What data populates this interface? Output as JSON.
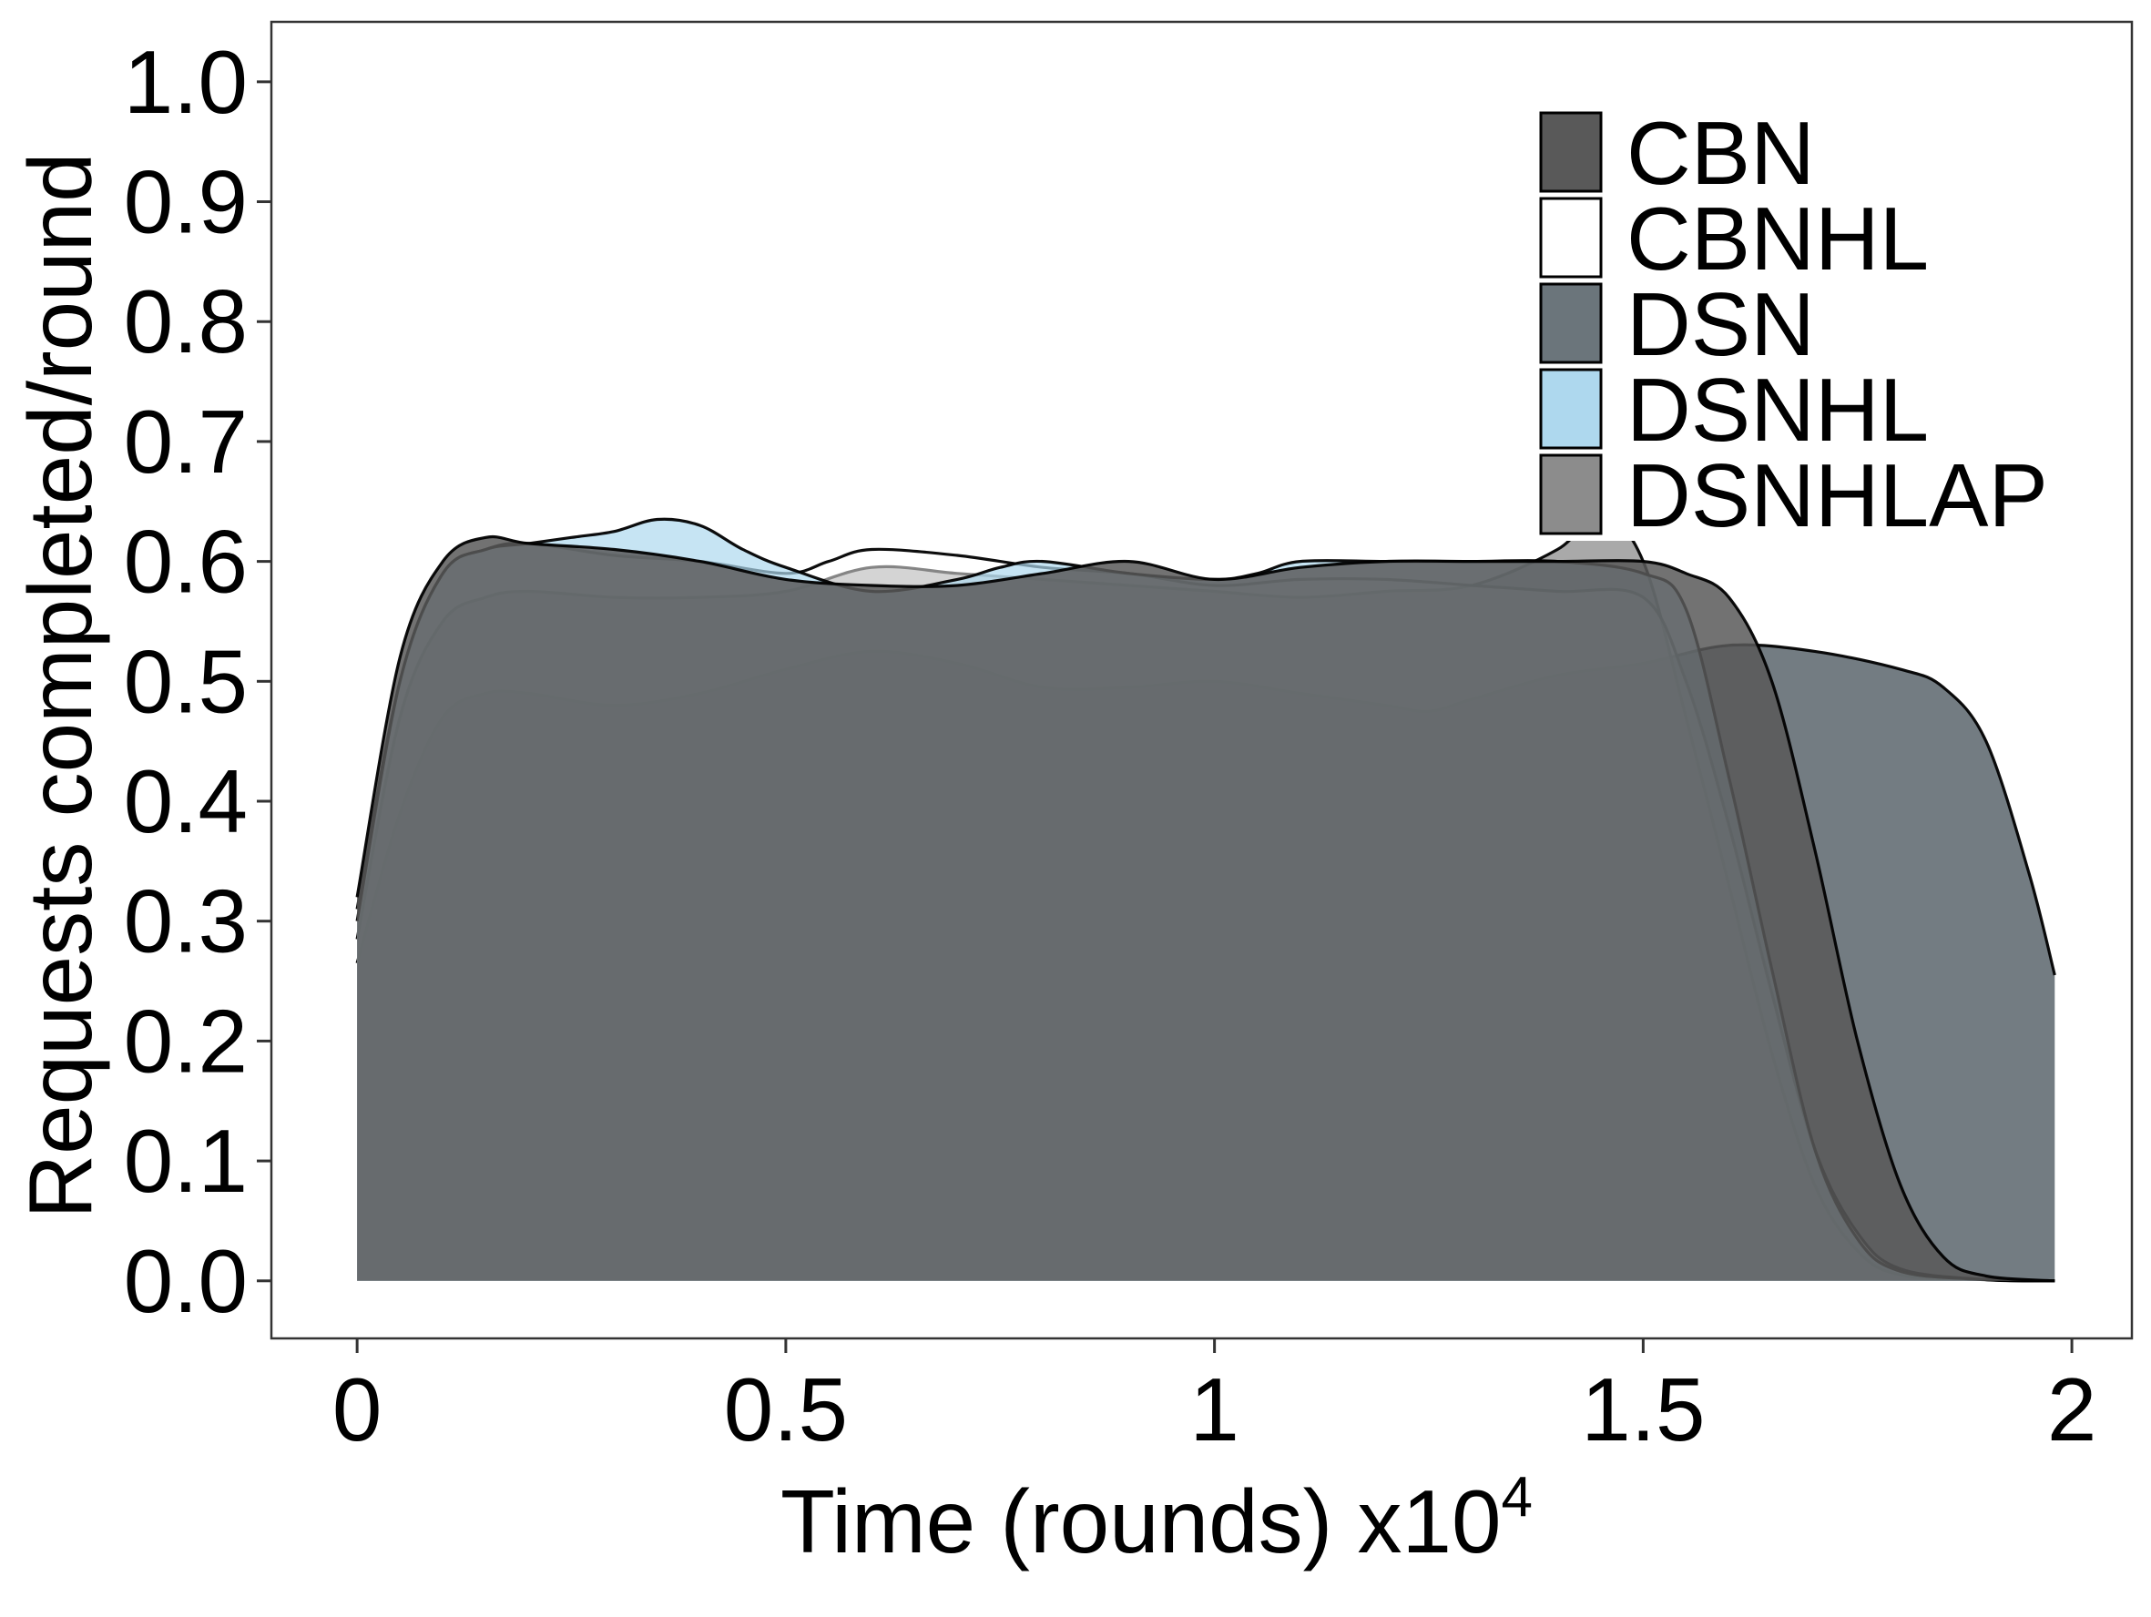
{
  "chart_data": {
    "type": "area",
    "title": "",
    "xlabel": "Time (rounds) x10",
    "xlabel_superscript": "4",
    "ylabel": "Requests completed/round",
    "xlim": [
      -0.1,
      2.07
    ],
    "ylim": [
      -0.048,
      1.05
    ],
    "xticks": [
      0,
      0.5,
      1,
      1.5,
      2
    ],
    "xtick_labels": [
      "0",
      "0.5",
      "1",
      "1.5",
      "2"
    ],
    "yticks": [
      0.0,
      0.1,
      0.2,
      0.3,
      0.4,
      0.5,
      0.6,
      0.7,
      0.8,
      0.9,
      1.0
    ],
    "ytick_labels": [
      "0.0",
      "0.1",
      "0.2",
      "0.3",
      "0.4",
      "0.5",
      "0.6",
      "0.7",
      "0.8",
      "0.9",
      "1.0"
    ],
    "grid": false,
    "legend_position": "top-right",
    "series": [
      {
        "name": "DSN",
        "color": "#6b757b",
        "opacity": 0.95,
        "x": [
          0,
          0.05,
          0.1,
          0.15,
          0.2,
          0.3,
          0.4,
          0.5,
          0.6,
          0.7,
          0.8,
          0.9,
          1.0,
          1.1,
          1.2,
          1.25,
          1.3,
          1.4,
          1.5,
          1.6,
          1.7,
          1.8,
          1.85,
          1.9,
          1.95,
          1.98
        ],
        "values": [
          0.265,
          0.39,
          0.47,
          0.49,
          0.49,
          0.48,
          0.49,
          0.51,
          0.525,
          0.515,
          0.495,
          0.495,
          0.5,
          0.49,
          0.48,
          0.475,
          0.485,
          0.505,
          0.515,
          0.53,
          0.525,
          0.51,
          0.495,
          0.45,
          0.34,
          0.255
        ]
      },
      {
        "name": "DSNHLAP",
        "color": "#8c8c8c",
        "opacity": 0.75,
        "x": [
          0,
          0.05,
          0.1,
          0.15,
          0.2,
          0.3,
          0.4,
          0.5,
          0.6,
          0.7,
          0.8,
          0.9,
          1.0,
          1.1,
          1.2,
          1.3,
          1.4,
          1.45,
          1.5,
          1.55,
          1.6,
          1.65,
          1.7,
          1.75,
          1.8,
          1.9,
          1.98
        ],
        "values": [
          0.285,
          0.47,
          0.55,
          0.57,
          0.575,
          0.57,
          0.57,
          0.575,
          0.595,
          0.59,
          0.585,
          0.58,
          0.575,
          0.57,
          0.575,
          0.58,
          0.61,
          0.64,
          0.6,
          0.47,
          0.33,
          0.19,
          0.08,
          0.025,
          0.005,
          0.001,
          0.0
        ]
      },
      {
        "name": "CBNHL",
        "color": "#ffffff",
        "opacity": 0.5,
        "x": [
          0,
          0.05,
          0.1,
          0.15,
          0.2,
          0.3,
          0.4,
          0.5,
          0.55,
          0.6,
          0.7,
          0.8,
          0.9,
          1.0,
          1.1,
          1.2,
          1.3,
          1.4,
          1.5,
          1.55,
          1.6,
          1.65,
          1.7,
          1.75,
          1.8,
          1.9,
          1.98
        ],
        "values": [
          0.31,
          0.5,
          0.59,
          0.61,
          0.615,
          0.605,
          0.6,
          0.59,
          0.6,
          0.61,
          0.605,
          0.595,
          0.59,
          0.58,
          0.585,
          0.585,
          0.58,
          0.575,
          0.57,
          0.5,
          0.38,
          0.24,
          0.11,
          0.04,
          0.01,
          0.001,
          0.0
        ]
      },
      {
        "name": "DSNHL",
        "color": "#aed8ee",
        "opacity": 0.7,
        "x": [
          0,
          0.05,
          0.1,
          0.15,
          0.2,
          0.25,
          0.3,
          0.35,
          0.4,
          0.45,
          0.5,
          0.6,
          0.7,
          0.75,
          0.8,
          0.9,
          1.0,
          1.05,
          1.1,
          1.2,
          1.3,
          1.4,
          1.5,
          1.55,
          1.6,
          1.65,
          1.7,
          1.75,
          1.8,
          1.9,
          1.98
        ],
        "values": [
          0.3,
          0.5,
          0.59,
          0.61,
          0.615,
          0.62,
          0.625,
          0.635,
          0.63,
          0.61,
          0.595,
          0.575,
          0.585,
          0.595,
          0.6,
          0.59,
          0.585,
          0.59,
          0.6,
          0.6,
          0.6,
          0.6,
          0.59,
          0.56,
          0.42,
          0.26,
          0.11,
          0.035,
          0.008,
          0.001,
          0.0
        ]
      },
      {
        "name": "CBN",
        "color": "#595959",
        "opacity": 0.85,
        "x": [
          0,
          0.05,
          0.1,
          0.15,
          0.2,
          0.3,
          0.4,
          0.5,
          0.6,
          0.7,
          0.8,
          0.9,
          1.0,
          1.1,
          1.2,
          1.3,
          1.4,
          1.5,
          1.55,
          1.6,
          1.65,
          1.7,
          1.75,
          1.8,
          1.85,
          1.9,
          1.98
        ],
        "values": [
          0.32,
          0.52,
          0.6,
          0.62,
          0.615,
          0.61,
          0.6,
          0.585,
          0.58,
          0.58,
          0.59,
          0.6,
          0.585,
          0.595,
          0.6,
          0.6,
          0.6,
          0.6,
          0.59,
          0.57,
          0.5,
          0.36,
          0.2,
          0.08,
          0.02,
          0.004,
          0.0
        ]
      }
    ],
    "legend": [
      {
        "label": "CBN",
        "color": "#595959"
      },
      {
        "label": "CBNHL",
        "color": "#ffffff"
      },
      {
        "label": "DSN",
        "color": "#6b757b"
      },
      {
        "label": "DSNHL",
        "color": "#aed8ee"
      },
      {
        "label": "DSNHLAP",
        "color": "#8c8c8c"
      }
    ]
  }
}
